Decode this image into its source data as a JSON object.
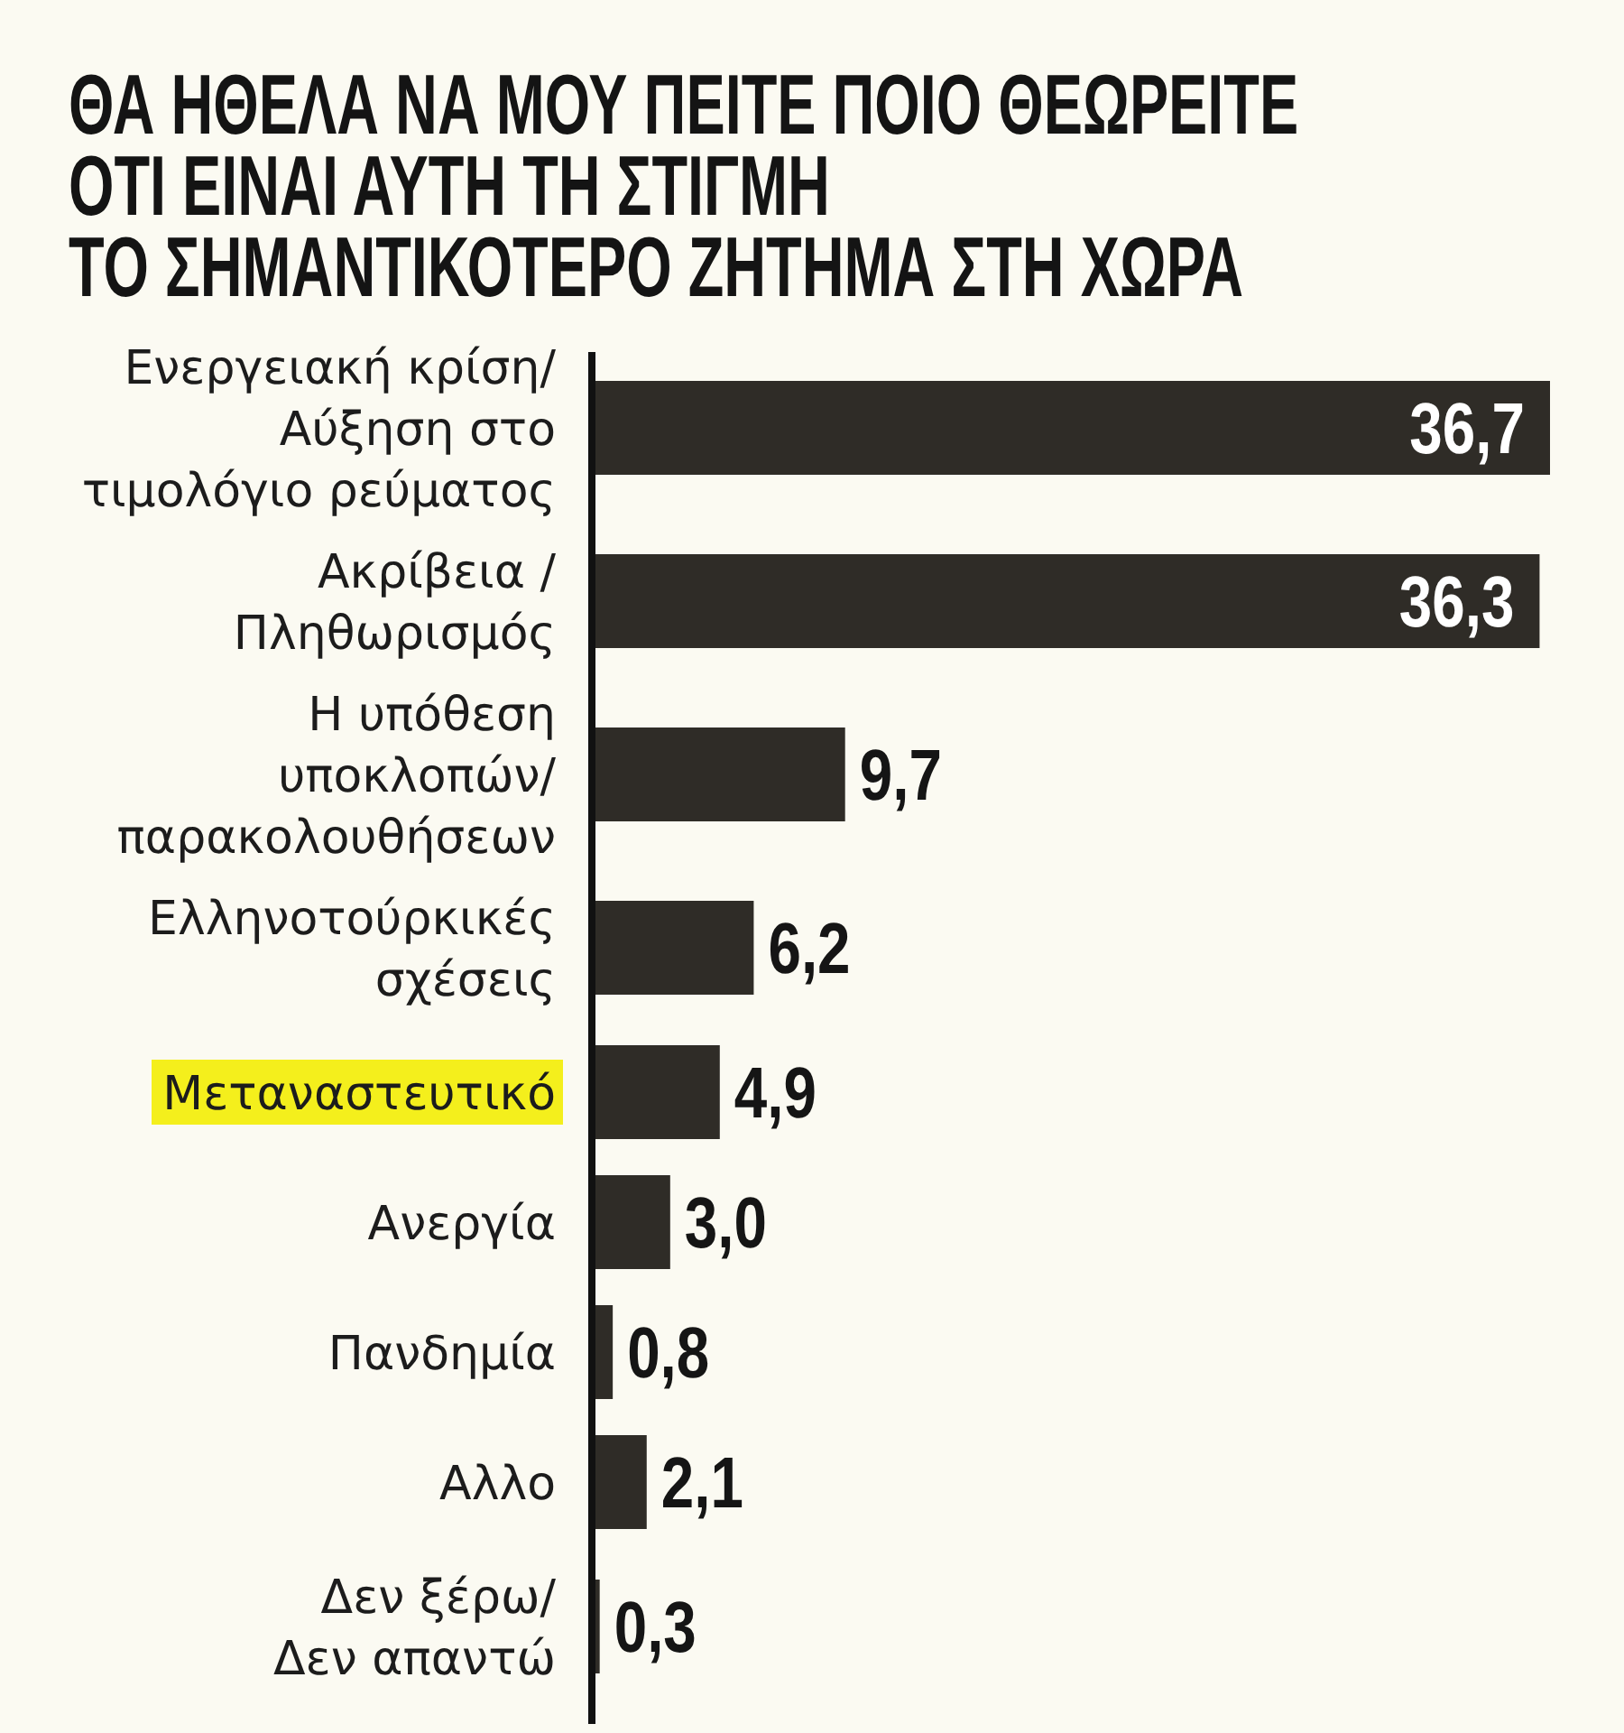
{
  "chart_data": {
    "type": "bar",
    "orientation": "horizontal",
    "title": "ΘΑ ΗΘΕΛΑ ΝΑ ΜΟΥ ΠΕΙΤΕ ΠΟΙΟ ΘΕΩΡΕΙΤΕ\nΟΤΙ ΕΙΝΑΙ ΑΥΤΗ ΤΗ ΣΤΙΓΜΗ\nΤΟ ΣΗΜΑΝΤΙΚΟΤΕΡΟ ΖΗΤΗΜΑ ΣΤΗ ΧΩΡΑ",
    "categories": [
      "Ενεργειακή κρίση/\nΑύξηση στο\nτιμολόγιο ρεύματος",
      "Ακρίβεια /\nΠληθωρισμός",
      "Η υπόθεση\nυποκλοπών/\nπαρακολουθήσεων",
      "Ελληνοτούρκικές\nσχέσεις",
      "Μεταναστευτικό",
      "Ανεργία",
      "Πανδημία",
      "Αλλο",
      "Δεν ξέρω/\nΔεν απαντώ"
    ],
    "values": [
      36.7,
      36.3,
      9.7,
      6.2,
      4.9,
      3.0,
      0.8,
      2.1,
      0.3
    ],
    "value_labels": [
      "36,7",
      "36,3",
      "9,7",
      "6,2",
      "4,9",
      "3,0",
      "0,8",
      "2,1",
      "0,3"
    ],
    "color": "#2f2c27",
    "tick_labels": "y"
  }
}
